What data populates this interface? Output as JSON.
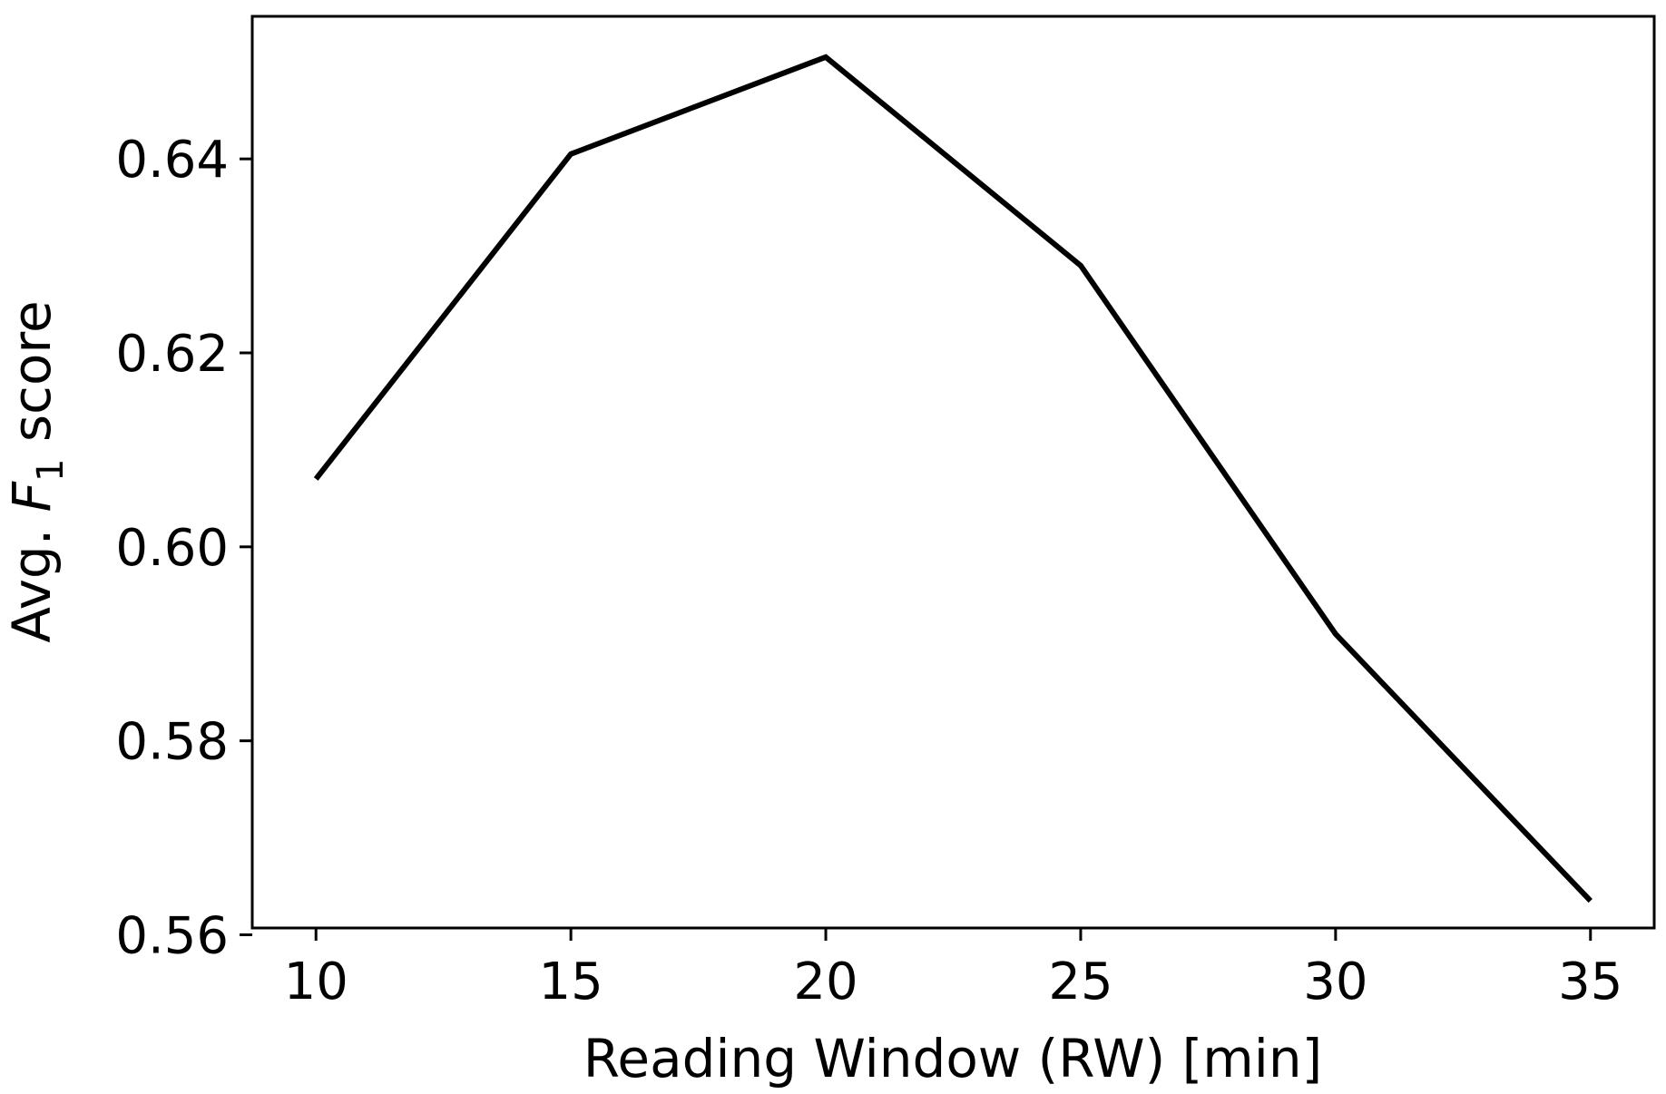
{
  "chart_data": {
    "type": "line",
    "title": "",
    "xlabel": "Reading Window (RW) [min]",
    "ylabel": {
      "prefix": "Avg. ",
      "symbol": "F",
      "subscript": "1",
      "suffix": " score"
    },
    "x": [
      10,
      15,
      20,
      25,
      30,
      35
    ],
    "series": [
      {
        "values": [
          0.607,
          0.6405,
          0.6505,
          0.629,
          0.591,
          0.5635
        ]
      }
    ],
    "xlim": [
      8.75,
      36.25
    ],
    "ylim": [
      0.5607,
      0.6547
    ],
    "x_ticks": [
      10,
      15,
      20,
      25,
      30,
      35
    ],
    "x_tick_labels": [
      "10",
      "15",
      "20",
      "25",
      "30",
      "35"
    ],
    "y_ticks": [
      0.56,
      0.58,
      0.6,
      0.62,
      0.64
    ],
    "y_tick_labels": [
      "0.56",
      "0.58",
      "0.60",
      "0.62",
      "0.64"
    ],
    "grid": false,
    "line_color": "#000000"
  }
}
